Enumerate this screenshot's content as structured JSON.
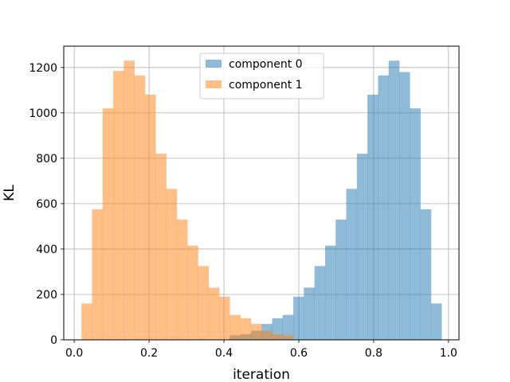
{
  "chart_data": {
    "type": "bar",
    "xlabel": "iteration",
    "ylabel": "KL",
    "xlim": [
      -0.028,
      1.028
    ],
    "ylim": [
      0,
      1294
    ],
    "grid": true,
    "legend_position": "top-center",
    "x_ticks": [
      "0.0",
      "0.2",
      "0.4",
      "0.6",
      "0.8",
      "1.0"
    ],
    "y_ticks": [
      "0",
      "200",
      "400",
      "600",
      "800",
      "1000",
      "1200"
    ],
    "bin_edges": [
      0.0193,
      0.0476,
      0.0759,
      0.1042,
      0.1325,
      0.1608,
      0.1891,
      0.2174,
      0.2457,
      0.274,
      0.3023,
      0.3306,
      0.3589,
      0.3872,
      0.4155,
      0.4438,
      0.4721,
      0.5004,
      0.5287,
      0.557,
      0.5853,
      0.6136,
      0.6419,
      0.6702,
      0.6985,
      0.7268,
      0.7551,
      0.7834,
      0.8117,
      0.84,
      0.8683,
      0.8966,
      0.9249,
      0.9532,
      0.9815
    ],
    "series": [
      {
        "name": "component 0",
        "color": "#1f77b4",
        "alpha": 0.5,
        "values": [
          0,
          0,
          0,
          0,
          0,
          0,
          0,
          0,
          0,
          0,
          0,
          0,
          0,
          0,
          20,
          25,
          40,
          70,
          95,
          110,
          190,
          230,
          325,
          415,
          530,
          665,
          820,
          1080,
          1165,
          1230,
          1180,
          1020,
          575,
          160
        ]
      },
      {
        "name": "component 1",
        "color": "#ff7f0e",
        "alpha": 0.5,
        "values": [
          160,
          575,
          1020,
          1185,
          1230,
          1165,
          1080,
          820,
          665,
          530,
          415,
          325,
          230,
          190,
          110,
          95,
          70,
          40,
          25,
          20,
          0,
          0,
          0,
          0,
          0,
          0,
          0,
          0,
          0,
          0,
          0,
          0,
          0,
          0
        ]
      }
    ]
  }
}
